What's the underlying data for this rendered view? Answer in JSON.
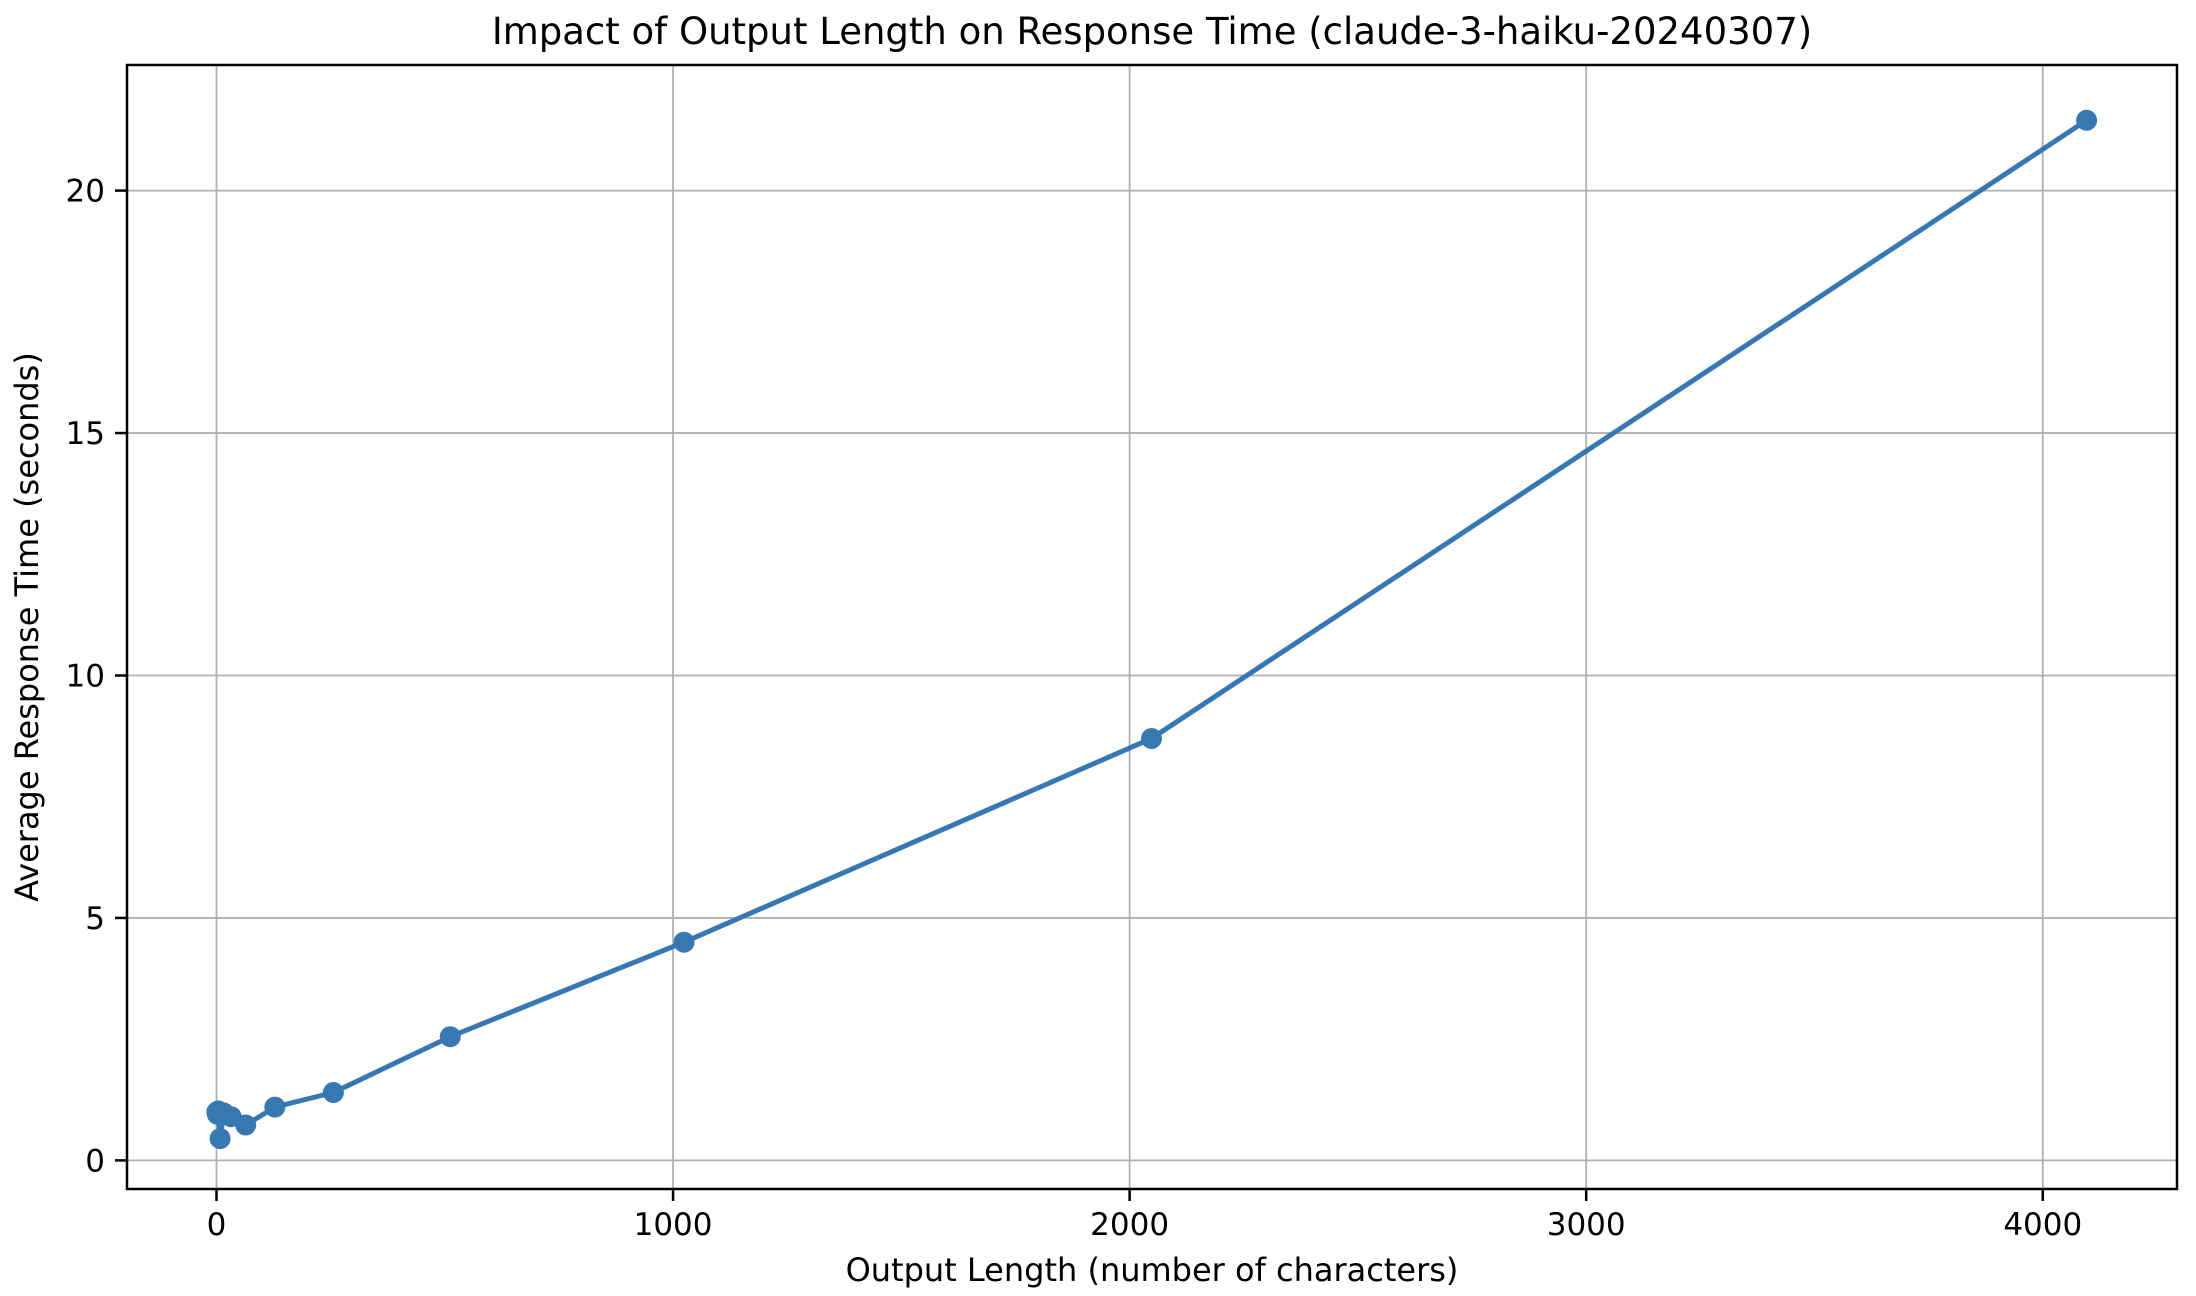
{
  "chart_data": {
    "type": "line",
    "title": "Impact of Output Length on Response Time (claude-3-haiku-20240307)",
    "xlabel": "Output Length (number of characters)",
    "ylabel": "Average Response Time (seconds)",
    "series": [
      {
        "name": "average-response-time",
        "x": [
          1,
          2,
          4,
          8,
          16,
          32,
          64,
          128,
          256,
          512,
          1024,
          2048,
          4096
        ],
        "y": [
          1.0,
          0.95,
          1.02,
          0.45,
          0.98,
          0.9,
          0.73,
          1.1,
          1.4,
          2.55,
          4.5,
          8.7,
          21.45
        ]
      }
    ],
    "xlim": [
      -196,
      4294
    ],
    "ylim": [
      -0.59,
      22.59
    ],
    "xticks": [
      0,
      1000,
      2000,
      3000,
      4000
    ],
    "yticks": [
      0,
      5,
      10,
      15,
      20
    ],
    "grid": true,
    "legend": "none",
    "colors": {
      "line": "#3878b2",
      "marker": "#3878b2",
      "grid": "#b0b0b0",
      "spine": "#000000",
      "text": "#000000",
      "background": "#ffffff"
    }
  }
}
